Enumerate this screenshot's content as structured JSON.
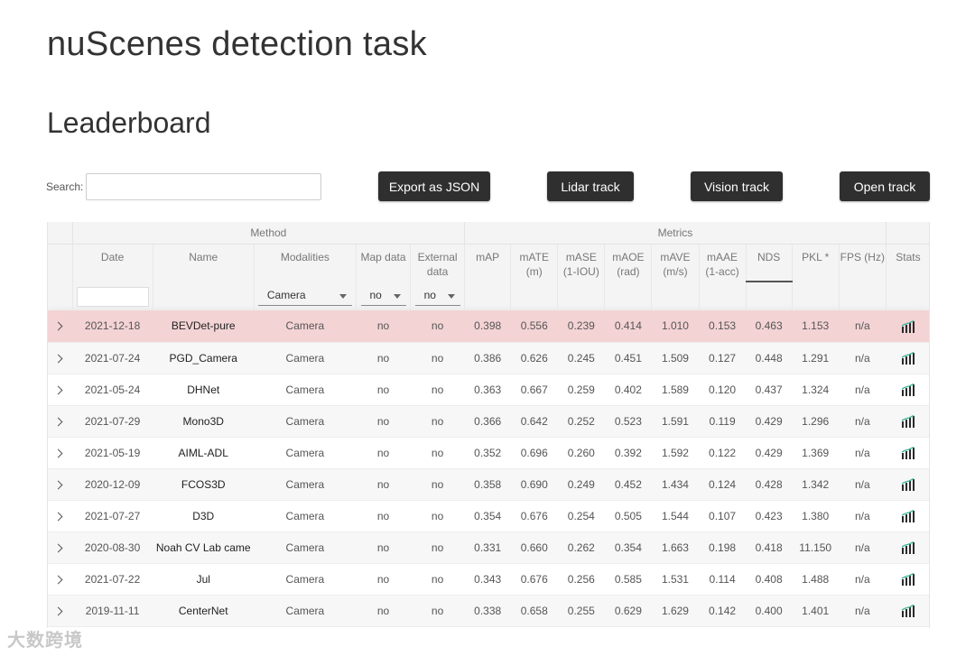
{
  "page": {
    "title": "nuScenes detection task",
    "section": "Leaderboard"
  },
  "search": {
    "label": "Search:",
    "value": "",
    "placeholder": ""
  },
  "buttons": {
    "export": "Export as JSON",
    "lidar": "Lidar track",
    "vision": "Vision track",
    "open": "Open track"
  },
  "table": {
    "groups": {
      "method": "Method",
      "metrics": "Metrics"
    },
    "columns": [
      "Date",
      "Name",
      "Modalities",
      "Map data",
      "External data",
      "mAP",
      "mATE (m)",
      "mASE (1-IOU)",
      "mAOE (rad)",
      "mAVE (m/s)",
      "mAAE (1-acc)",
      "NDS",
      "PKL *",
      "FPS (Hz)",
      "Stats"
    ],
    "filters": {
      "modalities": "Camera",
      "map": "no",
      "external": "no"
    },
    "sorted_column": "NDS",
    "rows": [
      {
        "date": "2021-12-18",
        "name": "BEVDet-pure",
        "modalities": "Camera",
        "map": "no",
        "external": "no",
        "mAP": "0.398",
        "mATE": "0.556",
        "mASE": "0.239",
        "mAOE": "0.414",
        "mAVE": "1.010",
        "mAAE": "0.153",
        "NDS": "0.463",
        "PKL": "1.153",
        "FPS": "n/a"
      },
      {
        "date": "2021-07-24",
        "name": "PGD_Camera",
        "modalities": "Camera",
        "map": "no",
        "external": "no",
        "mAP": "0.386",
        "mATE": "0.626",
        "mASE": "0.245",
        "mAOE": "0.451",
        "mAVE": "1.509",
        "mAAE": "0.127",
        "NDS": "0.448",
        "PKL": "1.291",
        "FPS": "n/a"
      },
      {
        "date": "2021-05-24",
        "name": "DHNet",
        "modalities": "Camera",
        "map": "no",
        "external": "no",
        "mAP": "0.363",
        "mATE": "0.667",
        "mASE": "0.259",
        "mAOE": "0.402",
        "mAVE": "1.589",
        "mAAE": "0.120",
        "NDS": "0.437",
        "PKL": "1.324",
        "FPS": "n/a"
      },
      {
        "date": "2021-07-29",
        "name": "Mono3D",
        "modalities": "Camera",
        "map": "no",
        "external": "no",
        "mAP": "0.366",
        "mATE": "0.642",
        "mASE": "0.252",
        "mAOE": "0.523",
        "mAVE": "1.591",
        "mAAE": "0.119",
        "NDS": "0.429",
        "PKL": "1.296",
        "FPS": "n/a"
      },
      {
        "date": "2021-05-19",
        "name": "AIML-ADL",
        "modalities": "Camera",
        "map": "no",
        "external": "no",
        "mAP": "0.352",
        "mATE": "0.696",
        "mASE": "0.260",
        "mAOE": "0.392",
        "mAVE": "1.592",
        "mAAE": "0.122",
        "NDS": "0.429",
        "PKL": "1.369",
        "FPS": "n/a"
      },
      {
        "date": "2020-12-09",
        "name": "FCOS3D",
        "modalities": "Camera",
        "map": "no",
        "external": "no",
        "mAP": "0.358",
        "mATE": "0.690",
        "mASE": "0.249",
        "mAOE": "0.452",
        "mAVE": "1.434",
        "mAAE": "0.124",
        "NDS": "0.428",
        "PKL": "1.342",
        "FPS": "n/a"
      },
      {
        "date": "2021-07-27",
        "name": "D3D",
        "modalities": "Camera",
        "map": "no",
        "external": "no",
        "mAP": "0.354",
        "mATE": "0.676",
        "mASE": "0.254",
        "mAOE": "0.505",
        "mAVE": "1.544",
        "mAAE": "0.107",
        "NDS": "0.423",
        "PKL": "1.380",
        "FPS": "n/a"
      },
      {
        "date": "2020-08-30",
        "name": "Noah CV Lab came",
        "modalities": "Camera",
        "map": "no",
        "external": "no",
        "mAP": "0.331",
        "mATE": "0.660",
        "mASE": "0.262",
        "mAOE": "0.354",
        "mAVE": "1.663",
        "mAAE": "0.198",
        "NDS": "0.418",
        "PKL": "11.150",
        "FPS": "n/a"
      },
      {
        "date": "2021-07-22",
        "name": "Jul",
        "modalities": "Camera",
        "map": "no",
        "external": "no",
        "mAP": "0.343",
        "mATE": "0.676",
        "mASE": "0.256",
        "mAOE": "0.585",
        "mAVE": "1.531",
        "mAAE": "0.114",
        "NDS": "0.408",
        "PKL": "1.488",
        "FPS": "n/a"
      },
      {
        "date": "2019-11-11",
        "name": "CenterNet",
        "modalities": "Camera",
        "map": "no",
        "external": "no",
        "mAP": "0.338",
        "mATE": "0.658",
        "mASE": "0.255",
        "mAOE": "0.629",
        "mAVE": "1.629",
        "mAAE": "0.142",
        "NDS": "0.400",
        "PKL": "1.401",
        "FPS": "n/a"
      }
    ],
    "highlight_row": 0
  },
  "icons": {
    "row_expand": "chevron-right-icon",
    "stats": "bar-chart-icon"
  },
  "colors": {
    "button_bg": "#2f2f2f",
    "highlight_row": "#f4d3d4",
    "header_bg": "#f4f4f4",
    "stats_icon": "#2a2a2a",
    "stats_accent": "#3fb89a"
  },
  "watermark": "大数跨境"
}
